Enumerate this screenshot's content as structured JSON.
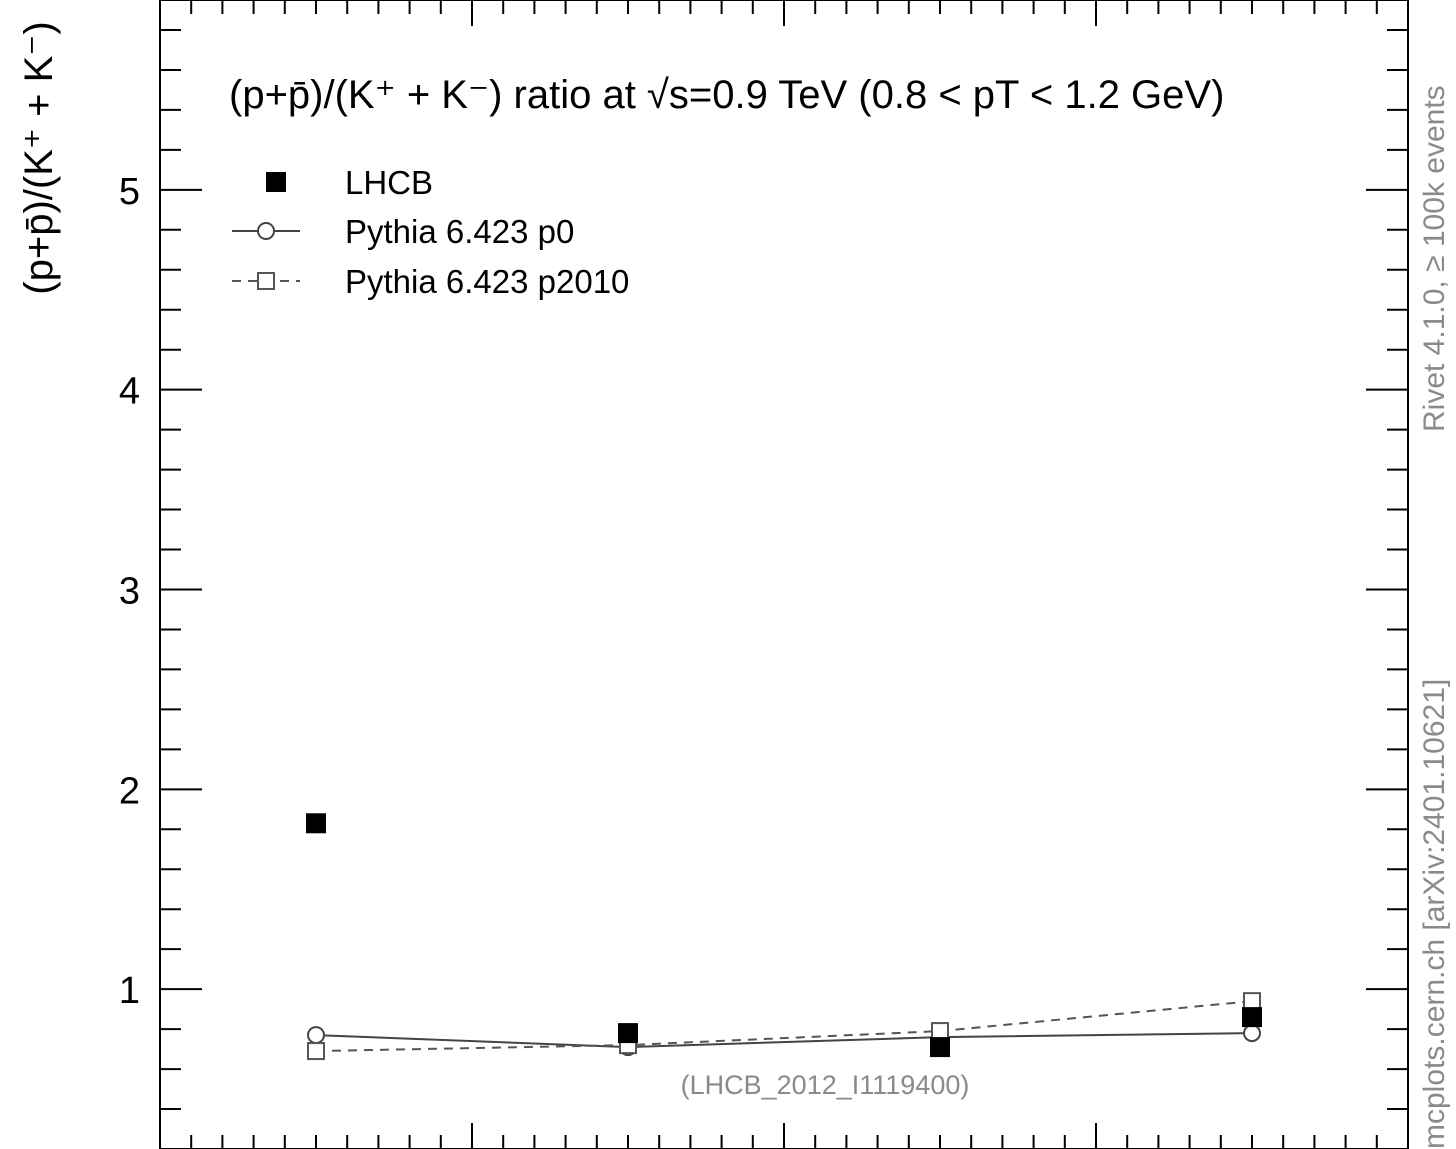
{
  "chart_data": {
    "type": "scatter",
    "title": "(p+p̄)/(K⁺ + K⁻) ratio at √s=0.9 TeV (0.8 < pT < 1.2 GeV)",
    "xlabel": "",
    "ylabel": "(p+p̄)/(K⁺ + K⁻)",
    "xlim": [
      0,
      4
    ],
    "ylim": [
      0.2,
      5.95
    ],
    "yticks": [
      1,
      2,
      3,
      4,
      5
    ],
    "ytick_labels": [
      "1",
      "2",
      "3",
      "4",
      "5"
    ],
    "legend_position": "top-left",
    "series": [
      {
        "name": "LHCB",
        "marker": "filled-square",
        "line": "none",
        "color": "#000000",
        "x": [
          0.5,
          1.5,
          2.5,
          3.5
        ],
        "y": [
          1.83,
          0.78,
          0.71,
          0.86
        ]
      },
      {
        "name": "Pythia 6.423 p0",
        "marker": "open-circle",
        "line": "solid",
        "color": "#444444",
        "x": [
          0.5,
          1.5,
          2.5,
          3.5
        ],
        "y": [
          0.77,
          0.71,
          0.76,
          0.78
        ]
      },
      {
        "name": "Pythia 6.423 p2010",
        "marker": "open-square",
        "line": "dashed",
        "color": "#555555",
        "x": [
          0.5,
          1.5,
          2.5,
          3.5
        ],
        "y": [
          0.69,
          0.72,
          0.79,
          0.94
        ]
      }
    ],
    "annotation": "(LHCB_2012_I1119400)"
  },
  "side_labels": {
    "rivet": "Rivet 4.1.0, ≥ 100k events",
    "mcplots": "mcplots.cern.ch [arXiv:2401.10621]"
  },
  "colors": {
    "annotation": "#8a8a8a",
    "frame": "#000000"
  }
}
